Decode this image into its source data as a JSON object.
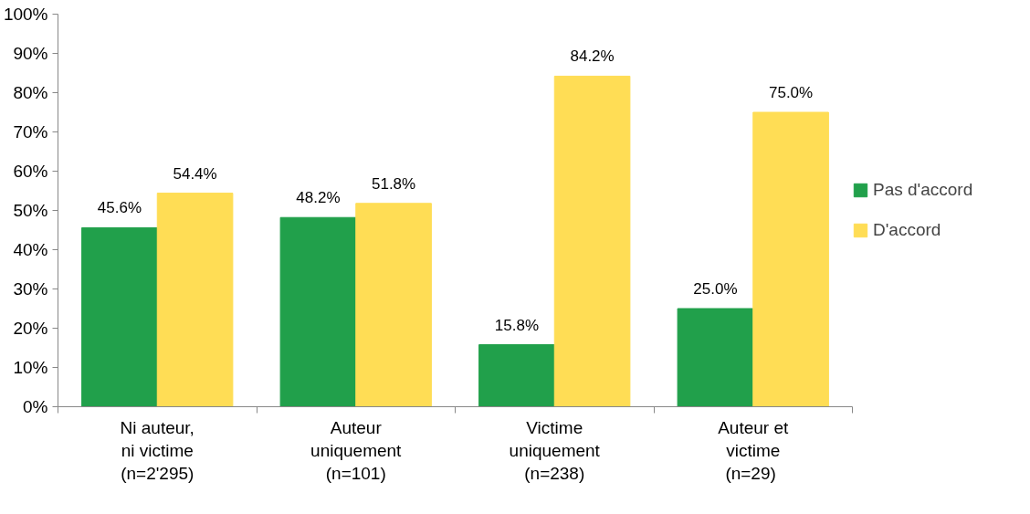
{
  "chart_data": {
    "type": "bar",
    "categories": [
      "Ni auteur,\nni victime\n(n=2'295)",
      "Auteur\nuniquement\n(n=101)",
      "Victime\nuniquement\n(n=238)",
      "Auteur et\nvictime\n (n=29)"
    ],
    "series": [
      {
        "name": "Pas d'accord",
        "color": "#21a04b",
        "values": [
          45.6,
          48.2,
          15.8,
          25.0
        ],
        "value_labels": [
          "45.6%",
          "48.2%",
          "15.8%",
          "25.0%"
        ]
      },
      {
        "name": "D'accord",
        "color": "#ffdd55",
        "values": [
          54.4,
          51.8,
          84.2,
          75.0
        ],
        "value_labels": [
          "54.4%",
          "51.8%",
          "84.2%",
          "75.0%"
        ]
      }
    ],
    "ylim": [
      0,
      100
    ],
    "yticks": [
      {
        "value": 0,
        "label": "0%"
      },
      {
        "value": 10,
        "label": "10%"
      },
      {
        "value": 20,
        "label": "20%"
      },
      {
        "value": 30,
        "label": "30%"
      },
      {
        "value": 40,
        "label": "40%"
      },
      {
        "value": 50,
        "label": "50%"
      },
      {
        "value": 60,
        "label": "60%"
      },
      {
        "value": 70,
        "label": "70%"
      },
      {
        "value": 80,
        "label": "80%"
      },
      {
        "value": 90,
        "label": "90%"
      },
      {
        "value": 100,
        "label": "100%"
      }
    ],
    "grid": false,
    "legend": "right"
  }
}
